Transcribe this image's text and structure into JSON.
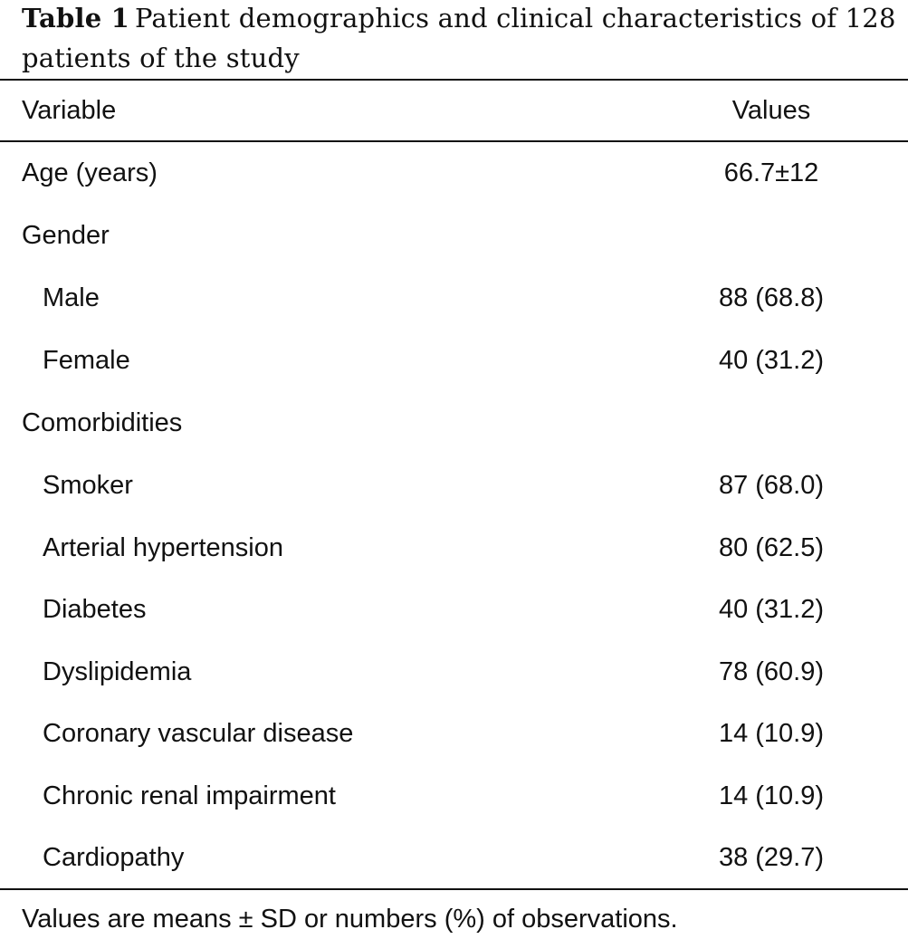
{
  "caption": {
    "label": "Table 1",
    "text": "Patient demographics and clinical characteristics of 128 patients of the study"
  },
  "table": {
    "headers": [
      "Variable",
      "Values"
    ],
    "rows": [
      {
        "variable": "Age (years)",
        "value": "66.7±12",
        "indent": false
      },
      {
        "variable": "Gender",
        "value": "",
        "indent": false
      },
      {
        "variable": "Male",
        "value": "88 (68.8)",
        "indent": true
      },
      {
        "variable": "Female",
        "value": "40 (31.2)",
        "indent": true
      },
      {
        "variable": "Comorbidities",
        "value": "",
        "indent": false
      },
      {
        "variable": "Smoker",
        "value": "87 (68.0)",
        "indent": true
      },
      {
        "variable": "Arterial hypertension",
        "value": "80 (62.5)",
        "indent": true
      },
      {
        "variable": "Diabetes",
        "value": "40 (31.2)",
        "indent": true
      },
      {
        "variable": "Dyslipidemia",
        "value": "78 (60.9)",
        "indent": true
      },
      {
        "variable": "Coronary vascular disease",
        "value": "14 (10.9)",
        "indent": true
      },
      {
        "variable": "Chronic renal impairment",
        "value": "14 (10.9)",
        "indent": true
      },
      {
        "variable": "Cardiopathy",
        "value": "38 (29.7)",
        "indent": true
      }
    ]
  },
  "footnote": "Values are means ± SD or numbers (%) of observations."
}
